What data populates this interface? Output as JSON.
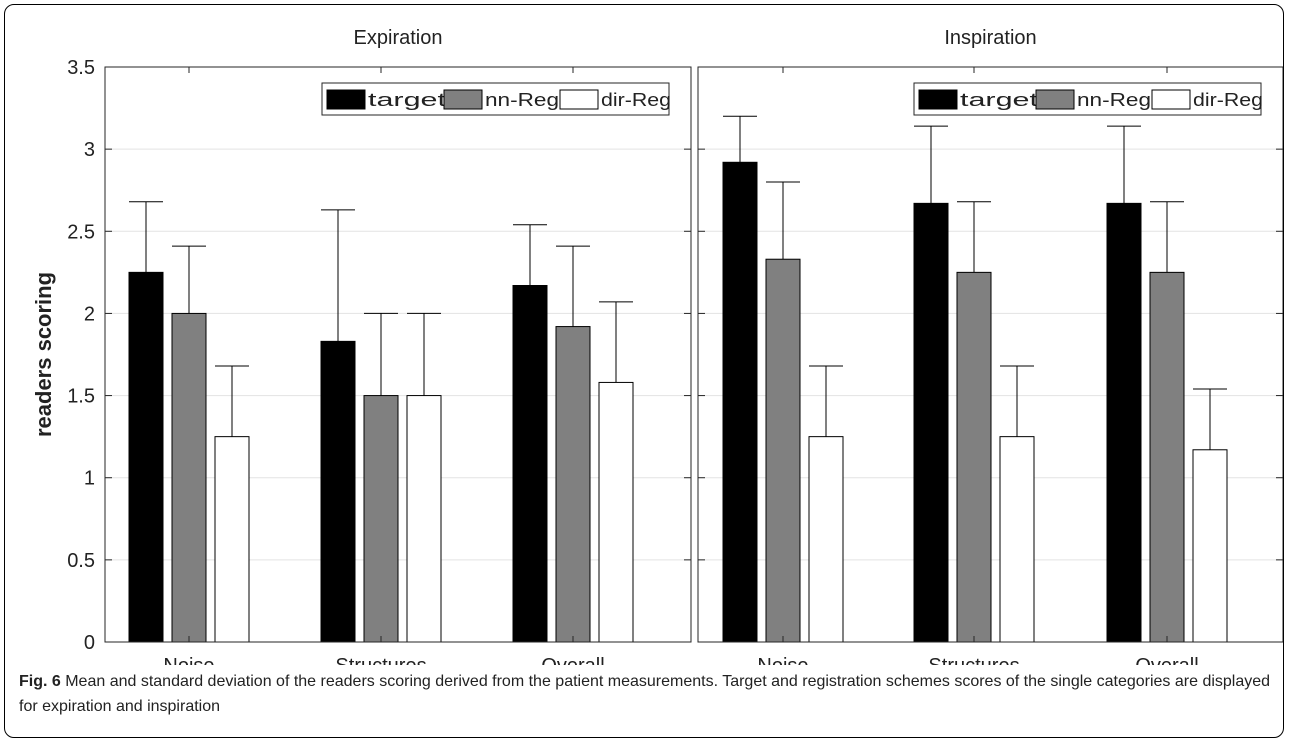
{
  "chart_data": [
    {
      "type": "bar",
      "title": "Expiration",
      "ylabel": "readers scoring",
      "ylim": [
        0,
        3.5
      ],
      "yticks": [
        0,
        0.5,
        1,
        1.5,
        2,
        2.5,
        3,
        3.5
      ],
      "grid": true,
      "legend": "top-right",
      "categories": [
        "Noise",
        "Structures",
        "Overall"
      ],
      "series": [
        {
          "name": "target",
          "color": "#000000",
          "values": [
            2.25,
            1.83,
            2.17
          ],
          "std": [
            0.43,
            0.8,
            0.37
          ]
        },
        {
          "name": "nn-Reg",
          "color": "#808080",
          "values": [
            2.0,
            1.5,
            1.92
          ],
          "std": [
            0.41,
            0.5,
            0.49
          ]
        },
        {
          "name": "dir-Reg",
          "color": "#ffffff",
          "values": [
            1.25,
            1.5,
            1.58
          ],
          "std": [
            0.43,
            0.5,
            0.49
          ]
        }
      ]
    },
    {
      "type": "bar",
      "title": "Inspiration",
      "ylim": [
        0,
        3.5
      ],
      "grid": true,
      "legend": "top-right",
      "categories": [
        "Noise",
        "Structures",
        "Overall"
      ],
      "series": [
        {
          "name": "target",
          "color": "#000000",
          "values": [
            2.92,
            2.67,
            2.67
          ],
          "std": [
            0.28,
            0.47,
            0.47
          ]
        },
        {
          "name": "nn-Reg",
          "color": "#808080",
          "values": [
            2.33,
            2.25,
            2.25
          ],
          "std": [
            0.47,
            0.43,
            0.43
          ]
        },
        {
          "name": "dir-Reg",
          "color": "#ffffff",
          "values": [
            1.25,
            1.25,
            1.17
          ],
          "std": [
            0.43,
            0.43,
            0.37
          ]
        }
      ]
    }
  ],
  "caption": {
    "label": "Fig. 6",
    "text": " Mean and standard deviation of the readers scoring derived from the patient measurements. Target and registration schemes scores of the single categories are displayed for expiration and inspiration"
  }
}
